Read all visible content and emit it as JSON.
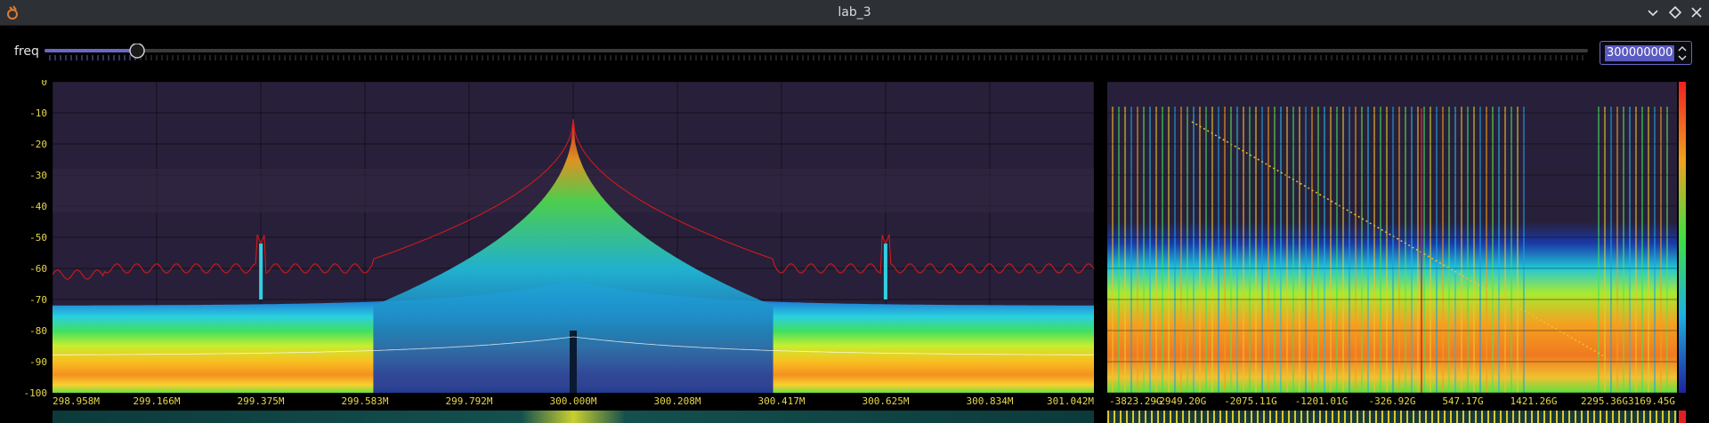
{
  "window": {
    "title": "lab_3",
    "buttons": [
      "minimize",
      "maximize",
      "close"
    ]
  },
  "controls": {
    "freq_label": "freq",
    "freq_value": "300000000",
    "slider_fraction": 0.06
  },
  "colors": {
    "accent": "#6a67c8",
    "trace": "#e01818",
    "tick_text": "#e8d84a",
    "plot_bg": "#28203a"
  },
  "chart_data": [
    {
      "type": "area",
      "ylim": [
        -100,
        0
      ],
      "y_ticks": [
        "0",
        "-10",
        "-20",
        "-30",
        "-40",
        "-50",
        "-60",
        "-70",
        "-80",
        "-90",
        "-100"
      ],
      "x_ticks": [
        "298.958M",
        "299.166M",
        "299.375M",
        "299.583M",
        "299.792M",
        "300.000M",
        "300.208M",
        "300.417M",
        "300.625M",
        "300.834M",
        "301.042M"
      ],
      "xlim": [
        298.958,
        301.042
      ],
      "peaks": [
        {
          "x": 300.0,
          "y": -12
        },
        {
          "x": 299.375,
          "y": -52
        },
        {
          "x": 300.625,
          "y": -52
        }
      ],
      "noise_floor": -62,
      "grid": true
    },
    {
      "type": "area",
      "x_ticks": [
        "-3823.29G",
        "-2949.20G",
        "-2075.11G",
        "-1201.01G",
        "-326.92G",
        "547.17G",
        "1421.26G",
        "2295.36G",
        "3169.45G"
      ],
      "grid": true
    }
  ]
}
